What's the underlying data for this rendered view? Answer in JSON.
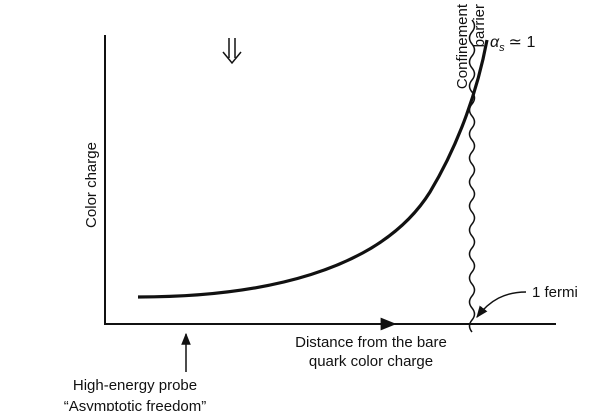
{
  "axes": {
    "y_label": "Color charge",
    "x_label": [
      "Distance from the bare",
      "quark color charge"
    ]
  },
  "barrier": {
    "label": [
      "Confinement",
      "barrier"
    ]
  },
  "coupling": {
    "symbol": "α",
    "subscript": "s",
    "relation": "≃ 1"
  },
  "scale": {
    "label": "1 fermi"
  },
  "probe": {
    "label": [
      "High-energy probe",
      "“Asymptotic freedom”"
    ]
  }
}
